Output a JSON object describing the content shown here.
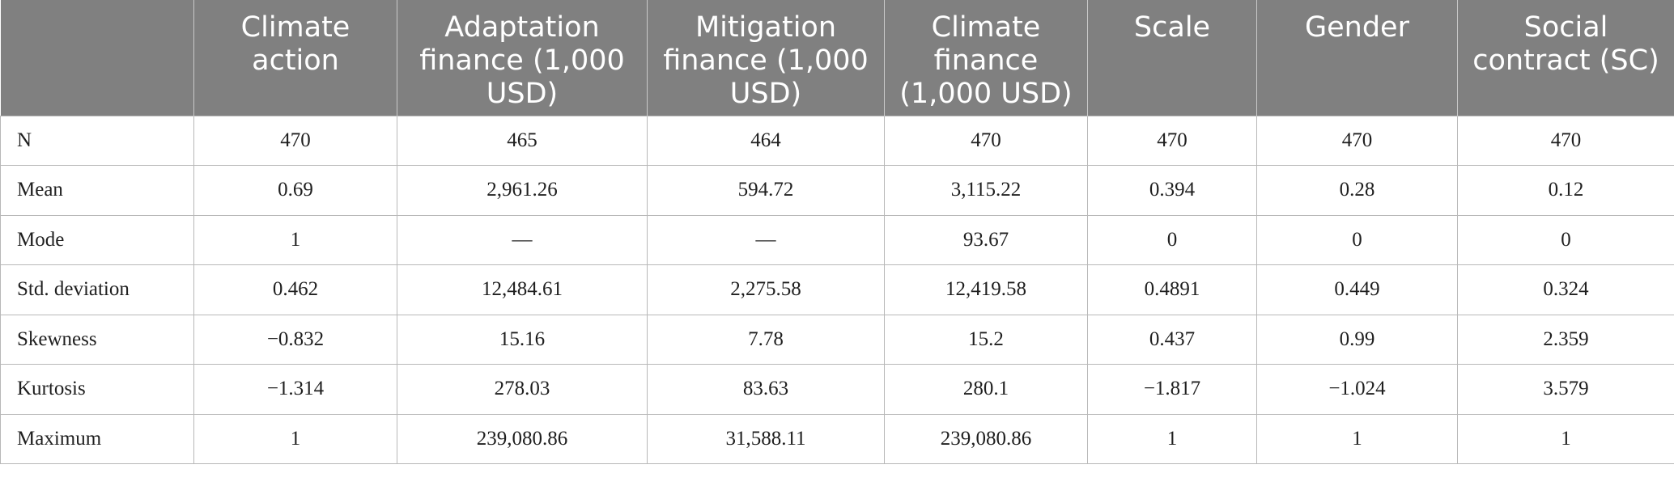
{
  "table": {
    "columns": [
      "",
      "Climate action",
      "Adaptation finance (1,000 USD)",
      "Mitigation finance (1,000 USD)",
      "Climate finance (1,000 USD)",
      "Scale",
      "Gender",
      "Social contract (SC)"
    ],
    "rows": [
      {
        "label": "N",
        "values": [
          "470",
          "465",
          "464",
          "470",
          "470",
          "470",
          "470"
        ]
      },
      {
        "label": "Mean",
        "values": [
          "0.69",
          "2,961.26",
          "594.72",
          "3,115.22",
          "0.394",
          "0.28",
          "0.12"
        ]
      },
      {
        "label": "Mode",
        "values": [
          "1",
          "—",
          "—",
          "93.67",
          "0",
          "0",
          "0"
        ]
      },
      {
        "label": "Std. deviation",
        "values": [
          "0.462",
          "12,484.61",
          "2,275.58",
          "12,419.58",
          "0.4891",
          "0.449",
          "0.324"
        ]
      },
      {
        "label": "Skewness",
        "values": [
          "−0.832",
          "15.16",
          "7.78",
          "15.2",
          "0.437",
          "0.99",
          "2.359"
        ]
      },
      {
        "label": "Kurtosis",
        "values": [
          "−1.314",
          "278.03",
          "83.63",
          "280.1",
          "−1.817",
          "−1.024",
          "3.579"
        ]
      },
      {
        "label": "Maximum",
        "values": [
          "1",
          "239,080.86",
          "31,588.11",
          "239,080.86",
          "1",
          "1",
          "1"
        ]
      }
    ]
  },
  "colors": {
    "header_background": "#808080",
    "header_text": "#ffffff",
    "grid_line": "#b8b8b8",
    "body_text": "#1f1f1f"
  }
}
